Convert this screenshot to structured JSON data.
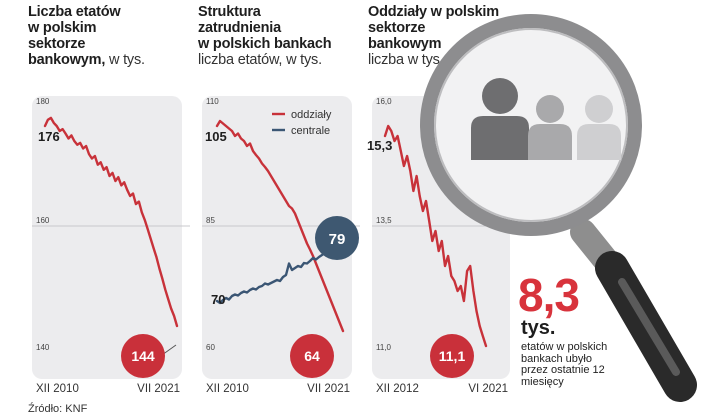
{
  "colors": {
    "red": "#c8323a",
    "badge_red": "#c9303a",
    "blue": "#3b5674",
    "badge_blue": "#3e5871",
    "panel": "#ececee",
    "grid": "#c9c9cc"
  },
  "charts": [
    {
      "title_lines": [
        "Liczba etatów",
        "w polskim",
        "sektorze"
      ],
      "title_last_bold": "bankowym,",
      "title_last_sub": " w tys.",
      "sub_lines": []
    },
    {
      "title_lines": [
        "Struktura",
        "zatrudnienia",
        "w polskich bankach"
      ],
      "title_last_bold": "",
      "title_last_sub": "",
      "sub_lines": [
        "liczba etatów, w tys."
      ]
    },
    {
      "title_lines": [
        "Oddziały w polskim",
        "sektorze",
        "bankowym"
      ],
      "title_last_bold": "",
      "title_last_sub": "",
      "sub_lines": [
        "liczba w tys."
      ]
    }
  ],
  "chart_data": [
    {
      "type": "line",
      "title": "Liczba etatów w polskim sektorze bankowym, w tys.",
      "ylim": [
        140,
        180
      ],
      "y_ticks": [
        "180",
        "160",
        "140"
      ],
      "y_tick_values": [
        180,
        160,
        140
      ],
      "x_tick_labels": [
        "XII 2010",
        "VII 2021"
      ],
      "series": [
        {
          "name": "etaty",
          "color": "#c8323a",
          "values": [
            176,
            177,
            177.3,
            176.5,
            176,
            175.2,
            175.5,
            174.8,
            174,
            174.5,
            173.6,
            173,
            173.3,
            172.4,
            172.8,
            171.5,
            170.8,
            171.2,
            169.8,
            170.2,
            169,
            169.4,
            168,
            168.5,
            167.2,
            167.8,
            166.5,
            167,
            165.8,
            164.8,
            165.2,
            163.5,
            163.9,
            162.2,
            161,
            159.5,
            158,
            156.5,
            155,
            153.2,
            151.6,
            149.8,
            148.3,
            146.8,
            145.6,
            144
          ]
        }
      ],
      "start_label": "176",
      "end_label": "144"
    },
    {
      "type": "line",
      "title": "Struktura zatrudnienia w polskich bankach, liczba etatów, w tys.",
      "ylim": [
        60,
        110
      ],
      "y_ticks": [
        "110",
        "85",
        "60"
      ],
      "y_tick_values": [
        110,
        85,
        60
      ],
      "x_tick_labels": [
        "XII 2010",
        "VII 2021"
      ],
      "legend": [
        "oddziały",
        "centrale"
      ],
      "series": [
        {
          "name": "oddziały",
          "color": "#c8323a",
          "values": [
            105,
            106,
            105.5,
            105,
            104.5,
            104,
            103,
            103.5,
            102.5,
            102,
            101,
            101.5,
            100,
            99.2,
            98.5,
            97.5,
            96.8,
            96,
            95,
            94,
            93,
            92,
            91,
            90,
            89,
            88.5,
            87.5,
            86,
            84.5,
            83,
            81.5,
            80.3,
            79,
            77.5,
            76,
            74.5,
            73,
            71.5,
            70,
            68.5,
            67,
            65.5,
            64
          ]
        },
        {
          "name": "centrale",
          "color": "#3b5674",
          "values": [
            70,
            69.6,
            70.2,
            70.6,
            70.3,
            71,
            71.3,
            71.1,
            71.6,
            71.9,
            71.7,
            72.2,
            72.5,
            72.3,
            72.8,
            73,
            73.5,
            73.3,
            73.6,
            73.9,
            74.2,
            74,
            74.8,
            75.2,
            77.5,
            76.2,
            76.6,
            77,
            76.8,
            77.6,
            77.5,
            78,
            78.6,
            78.3,
            78.8,
            79.2,
            79.6,
            79.2,
            79.5,
            78.8,
            79.1,
            79.3,
            79
          ]
        }
      ],
      "start_labels": [
        "105",
        "70"
      ],
      "end_labels": [
        "64",
        "79"
      ]
    },
    {
      "type": "line",
      "title": "Oddziały w polskim sektorze bankowym, liczba w tys.",
      "ylim": [
        11.0,
        16.0
      ],
      "y_ticks": [
        "16,0",
        "13,5",
        "11,0"
      ],
      "y_tick_values": [
        16.0,
        13.5,
        11.0
      ],
      "x_tick_labels": [
        "XII 2012",
        "VI 2021"
      ],
      "series": [
        {
          "name": "oddziały",
          "color": "#c8323a",
          "values": [
            15.3,
            15.5,
            15.4,
            15.2,
            15.3,
            15.0,
            14.7,
            14.9,
            14.6,
            14.2,
            14.5,
            14.1,
            13.8,
            14.0,
            13.6,
            13.2,
            13.4,
            13.0,
            13.2,
            12.7,
            12.9,
            12.5,
            12.4,
            12.2,
            12.3,
            12.0,
            12.6,
            12.7,
            12.2,
            11.8,
            11.5,
            11.3,
            11.1
          ]
        }
      ],
      "start_label": "15,3",
      "end_label": "11,1"
    }
  ],
  "highlight": {
    "value": "8,3",
    "unit": "tys.",
    "note": "etatów w polskich bankach ubyło przez ostatnie 12 miesięcy"
  },
  "source": "Źródło: KNF"
}
